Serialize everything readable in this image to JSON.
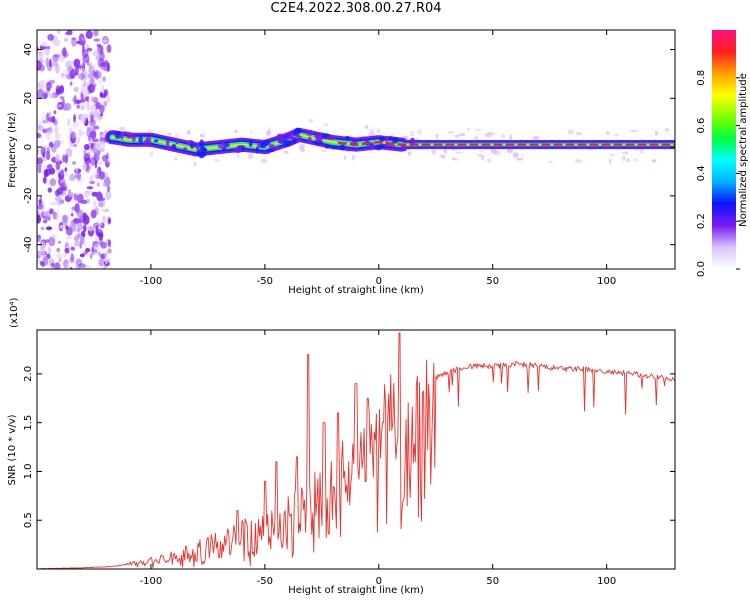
{
  "figure_title": "C2E4.2022.308.00.27.R04",
  "colors": {
    "snr_line": "#e8342f",
    "spectrum_purple": "#7a1cf0",
    "spectrum_center": "#e8242a"
  },
  "chart_data": [
    {
      "type": "heatmap",
      "title": "",
      "xlabel": "Height of straight line (km)",
      "ylabel": "Frequency (Hz)",
      "xlim": [
        -150,
        130
      ],
      "ylim": [
        -50,
        48
      ],
      "x_ticks": [
        "-100",
        "-50",
        "0",
        "50",
        "100"
      ],
      "x_tick_values": [
        -100,
        -50,
        0,
        50,
        100
      ],
      "y_ticks": [
        "40",
        "20",
        "0",
        "-20",
        "-40"
      ],
      "y_tick_values": [
        40,
        20,
        0,
        -20,
        -40
      ],
      "noise_region_x": [
        -150,
        -118
      ],
      "ridge": {
        "x": [
          -116,
          -110,
          -100,
          -90,
          -80,
          -70,
          -60,
          -50,
          -40,
          -35,
          -30,
          -20,
          -10,
          0,
          10,
          20,
          40,
          60,
          80,
          100,
          130
        ],
        "freq": [
          4,
          3,
          3,
          1,
          -1,
          0,
          1,
          0,
          3,
          5,
          4,
          2,
          1,
          2,
          1,
          1,
          1,
          1,
          1,
          1,
          1
        ]
      },
      "colorbar": {
        "label": "Normalized spectral amplitude",
        "range": [
          0,
          1
        ],
        "ticks": [
          "0.0",
          "0.2",
          "0.4",
          "0.6",
          "0.8"
        ],
        "tick_values": [
          0.0,
          0.2,
          0.4,
          0.6,
          0.8
        ],
        "colors": [
          "#ffffff",
          "#d9c4ff",
          "#7a1cf0",
          "#1010ff",
          "#00b0ff",
          "#00ffff",
          "#00ff40",
          "#80ff00",
          "#ffff00",
          "#ffa000",
          "#ff2020",
          "#ff1080"
        ]
      }
    },
    {
      "type": "line",
      "title": "",
      "xlabel": "Height of straight line (km)",
      "ylabel": "SNR (10 * v/v)",
      "y_multiplier": "(x10⁴)",
      "xlim": [
        -150,
        130
      ],
      "ylim": [
        0,
        2.45
      ],
      "x_ticks": [
        "-100",
        "-50",
        "0",
        "50",
        "100"
      ],
      "x_tick_values": [
        -100,
        -50,
        0,
        50,
        100
      ],
      "y_ticks": [
        "0.5",
        "1.0",
        "1.5",
        "2.0"
      ],
      "y_tick_values": [
        0.5,
        1.0,
        1.5,
        2.0
      ],
      "series": [
        {
          "x": [
            -150,
            -130,
            -120,
            -115,
            -110,
            -100,
            -90,
            -80,
            -70,
            -60,
            -50,
            -45,
            -40,
            -35,
            -30,
            -25,
            -20,
            -15,
            -10,
            -5,
            0,
            5,
            8,
            10,
            12,
            15,
            20,
            25,
            30,
            40,
            50,
            60,
            70,
            80,
            90,
            100,
            110,
            120,
            130
          ],
          "y": [
            0.0,
            0.01,
            0.02,
            0.03,
            0.06,
            0.09,
            0.13,
            0.2,
            0.28,
            0.35,
            0.42,
            0.48,
            0.55,
            0.65,
            0.75,
            0.85,
            0.95,
            1.05,
            1.15,
            1.3,
            1.5,
            1.62,
            1.45,
            0.6,
            1.3,
            1.6,
            1.8,
            1.95,
            2.02,
            2.08,
            2.08,
            2.1,
            2.08,
            2.05,
            2.05,
            2.02,
            2.0,
            1.98,
            1.95
          ],
          "spikes": [
            {
              "x": -62,
              "y": 0.6
            },
            {
              "x": -50,
              "y": 0.9
            },
            {
              "x": -45,
              "y": 1.1
            },
            {
              "x": -36,
              "y": 1.15
            },
            {
              "x": -31,
              "y": 2.2
            },
            {
              "x": -24,
              "y": 1.5
            },
            {
              "x": -18,
              "y": 1.6
            },
            {
              "x": -10,
              "y": 1.9
            },
            {
              "x": -5,
              "y": 1.75
            },
            {
              "x": 2,
              "y": 1.5
            },
            {
              "x": 9,
              "y": 2.42
            }
          ]
        }
      ]
    }
  ]
}
